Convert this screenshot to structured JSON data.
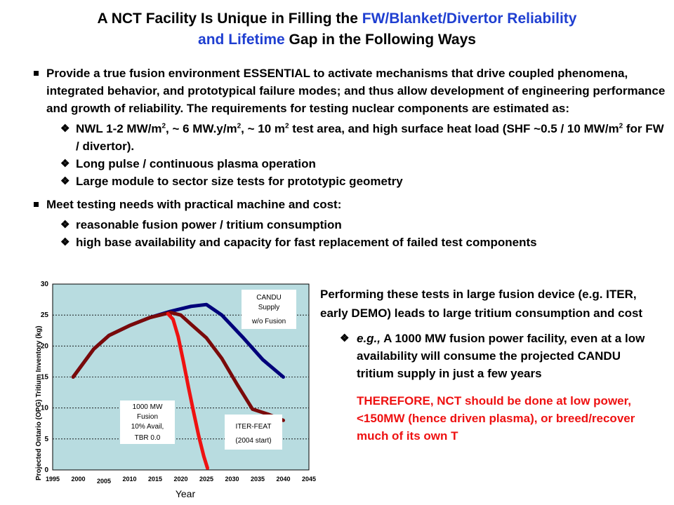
{
  "title": {
    "line1_a": "A NCT Facility Is Unique in Filling the ",
    "line1_b": "FW/Blanket/Divertor Reliability",
    "line2_a": "and Lifetime",
    "line2_b": " Gap in the Following Ways"
  },
  "bullet1": {
    "text_a": "Provide a true fusion environment ",
    "text_b": "ESSENTIAL",
    "text_c": " to activate mechanisms that drive coupled phenomena, integrated behavior, and prototypical failure modes; and thus allow development of engineering performance and growth of reliability.  The requirements for testing nuclear components are estimated as:",
    "sub1_a": "NWL 1-2 MW/m",
    "sub1_b": "2",
    "sub1_c": ", ~ 6 MW.y/m",
    "sub1_d": "2",
    "sub1_e": ", ~ 10 m",
    "sub1_f": "2",
    "sub1_g": " test area, and high surface heat load (SHF ~0.5 / 10 MW/m",
    "sub1_h": "2",
    "sub1_i": " for FW / divertor).",
    "sub2": "Long pulse / continuous plasma operation",
    "sub3": "Large module to sector size tests for prototypic geometry"
  },
  "bullet2": {
    "text": "Meet testing needs with practical machine and cost:",
    "sub1": "reasonable fusion power / tritium consumption",
    "sub2": "high base availability and capacity for fast replacement of failed test components"
  },
  "right": {
    "para": "Performing these tests in large fusion device (e.g. ITER, early DEMO) leads to large tritium consumption and cost",
    "sub_a": "e.g.,",
    "sub_b": " A 1000 MW fusion power facility, even at a low availability will consume the projected CANDU tritium supply in just a few years",
    "therefore": "THEREFORE, NCT should be done at low power, <150MW (hence driven plasma), or breed/recover much of its own T"
  },
  "icons": {
    "bullet": "square-bullet",
    "sub_bullet": "diamond-bullet"
  },
  "chart_data": {
    "type": "line",
    "ylabel": "Projected Ontario (OPG) Tritium Inventory (kg)",
    "xlabel": "Year",
    "ylim": [
      0,
      30
    ],
    "xlim": [
      1995,
      2045
    ],
    "y_ticks": [
      "0",
      "5",
      "10",
      "15",
      "20",
      "25",
      "30"
    ],
    "x_ticks": [
      "1995",
      "2000",
      "2005",
      "2010",
      "2015",
      "2020",
      "2025",
      "2030",
      "2035",
      "2040",
      "2045"
    ],
    "grid": true,
    "background": "#b8dce0",
    "series": [
      {
        "name": "CANDU Supply w/o Fusion",
        "color": "#00007a",
        "x": [
          1999,
          2003,
          2006,
          2010,
          2014,
          2018,
          2022,
          2025,
          2028,
          2032,
          2036,
          2040
        ],
        "y": [
          15,
          19.5,
          21.7,
          23.3,
          24.6,
          25.6,
          26.4,
          26.7,
          25,
          21.5,
          17.8,
          15
        ]
      },
      {
        "name": "ITER-FEAT (2004 start)",
        "color": "#7a0a0a",
        "x": [
          1999,
          2003,
          2006,
          2010,
          2014,
          2018,
          2020,
          2022,
          2025,
          2028,
          2031,
          2034,
          2037,
          2040
        ],
        "y": [
          15,
          19.5,
          21.7,
          23.3,
          24.6,
          25.4,
          25.0,
          23.5,
          21.3,
          18.0,
          13.8,
          9.8,
          9.0,
          8.0
        ]
      },
      {
        "name": "1000 MW Fusion 10% Avail, TBR 0.0",
        "color": "#ee1111",
        "x": [
          2017.5,
          2018.5,
          2019.5,
          2020.5,
          2021.5,
          2022.5,
          2023.5,
          2024.5,
          2025.2
        ],
        "y": [
          25.2,
          24.3,
          21.5,
          17.5,
          13.3,
          9.3,
          5.5,
          2.2,
          0.3
        ]
      }
    ],
    "annotations": [
      {
        "lines": [
          "CANDU",
          "Supply",
          "w/o Fusion"
        ]
      },
      {
        "lines": [
          "1000 MW",
          "Fusion",
          "10% Avail,",
          "TBR 0.0"
        ]
      },
      {
        "lines": [
          "ITER-FEAT",
          "(2004 start)"
        ]
      }
    ]
  }
}
